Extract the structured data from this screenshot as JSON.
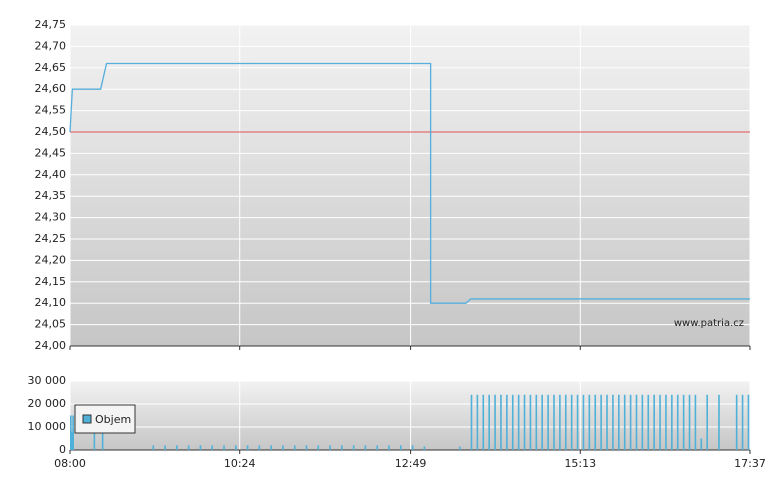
{
  "chart_data": [
    {
      "type": "line",
      "watermark": "www.patria.cz",
      "xlim": [
        "08:00",
        "17:37"
      ],
      "xticks": [
        "08:00",
        "10:24",
        "12:49",
        "15:13",
        "17:37"
      ],
      "ylim": [
        24.0,
        24.75
      ],
      "yticks": [
        {
          "value": 24.0,
          "label": "24,00"
        },
        {
          "value": 24.05,
          "label": "24,05"
        },
        {
          "value": 24.1,
          "label": "24,10"
        },
        {
          "value": 24.15,
          "label": "24,15"
        },
        {
          "value": 24.2,
          "label": "24,20"
        },
        {
          "value": 24.25,
          "label": "24,25"
        },
        {
          "value": 24.3,
          "label": "24,30"
        },
        {
          "value": 24.35,
          "label": "24,35"
        },
        {
          "value": 24.4,
          "label": "24,40"
        },
        {
          "value": 24.45,
          "label": "24,45"
        },
        {
          "value": 24.5,
          "label": "24,50"
        },
        {
          "value": 24.55,
          "label": "24,55"
        },
        {
          "value": 24.6,
          "label": "24,60"
        },
        {
          "value": 24.65,
          "label": "24,65"
        },
        {
          "value": 24.7,
          "label": "24,70"
        },
        {
          "value": 24.75,
          "label": "24,75"
        }
      ],
      "grid": true,
      "reference": {
        "value": 24.5,
        "color": "#e05050"
      },
      "series": [
        {
          "color": "#55aedc",
          "x": [
            "08:00",
            "08:02",
            "08:26",
            "08:31",
            "13:06",
            "13:06",
            "13:36",
            "13:40",
            "17:37"
          ],
          "values": [
            24.5,
            24.6,
            24.6,
            24.66,
            24.66,
            24.1,
            24.1,
            24.11,
            24.11
          ]
        }
      ]
    },
    {
      "type": "bar",
      "xlim": [
        "08:00",
        "17:37"
      ],
      "xticks": [
        "08:00",
        "10:24",
        "12:49",
        "15:13",
        "17:37"
      ],
      "ylim": [
        0,
        30000
      ],
      "yticks": [
        0,
        {
          "value": 10000,
          "label": "10 000"
        },
        {
          "value": 20000,
          "label": "20 000"
        },
        {
          "value": 30000,
          "label": "30 000"
        }
      ],
      "grid": true,
      "legend": "upper left",
      "series": [
        {
          "name": "Objem",
          "color": "#4fb0d8",
          "x": [
            "08:00",
            "08:01",
            "08:02",
            "08:20",
            "08:27",
            "09:10",
            "09:20",
            "09:30",
            "09:40",
            "09:50",
            "10:00",
            "10:10",
            "10:20",
            "10:30",
            "10:40",
            "10:50",
            "11:00",
            "11:10",
            "11:20",
            "11:30",
            "11:40",
            "11:50",
            "12:00",
            "12:10",
            "12:20",
            "12:30",
            "12:40",
            "12:50",
            "13:00",
            "13:30",
            "13:40",
            "13:45",
            "13:50",
            "13:55",
            "14:00",
            "14:05",
            "14:10",
            "14:15",
            "14:20",
            "14:25",
            "14:30",
            "14:35",
            "14:40",
            "14:45",
            "14:50",
            "14:55",
            "15:00",
            "15:05",
            "15:10",
            "15:15",
            "15:20",
            "15:25",
            "15:30",
            "15:35",
            "15:40",
            "15:45",
            "15:50",
            "15:55",
            "16:00",
            "16:05",
            "16:10",
            "16:15",
            "16:20",
            "16:25",
            "16:30",
            "16:35",
            "16:40",
            "16:45",
            "16:50",
            "16:55",
            "17:00",
            "17:10",
            "17:25",
            "17:30",
            "17:35"
          ],
          "values": [
            15000,
            8000,
            15000,
            15000,
            15000,
            2000,
            2000,
            2000,
            2000,
            2000,
            2000,
            2000,
            2000,
            2000,
            2000,
            2000,
            2000,
            2000,
            2000,
            2000,
            2000,
            2000,
            2000,
            2000,
            2000,
            2000,
            2000,
            2000,
            1500,
            1500,
            24000,
            24000,
            24000,
            24000,
            24000,
            24000,
            24000,
            24000,
            24000,
            24000,
            24000,
            24000,
            24000,
            24000,
            24000,
            24000,
            24000,
            24000,
            24000,
            24000,
            24000,
            24000,
            24000,
            24000,
            24000,
            24000,
            24000,
            24000,
            24000,
            24000,
            24000,
            24000,
            24000,
            24000,
            24000,
            24000,
            24000,
            24000,
            24000,
            5000,
            24000,
            24000,
            24000,
            24000,
            24000
          ]
        }
      ]
    }
  ]
}
